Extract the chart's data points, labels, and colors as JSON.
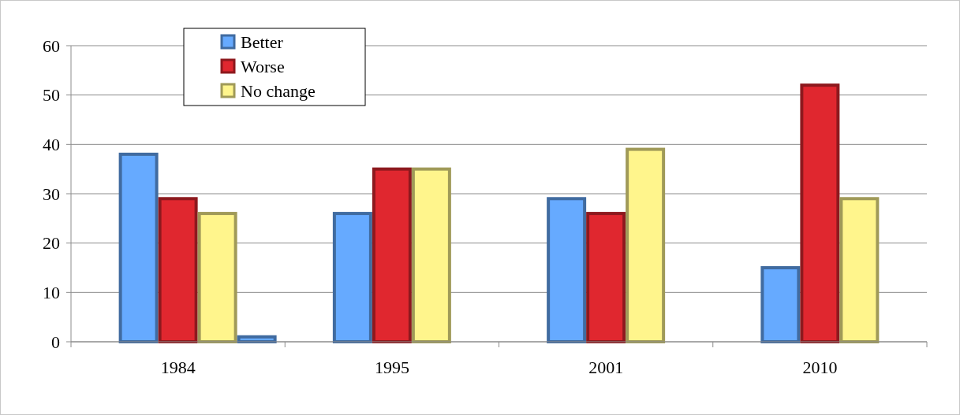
{
  "chart_data": {
    "type": "bar",
    "categories": [
      "1984",
      "1995",
      "2001",
      "2010"
    ],
    "series": [
      {
        "name": "Better",
        "color": "#66aaff",
        "values": [
          38,
          26,
          29,
          15
        ]
      },
      {
        "name": "Worse",
        "color": "#e0272f",
        "values": [
          29,
          35,
          26,
          52
        ]
      },
      {
        "name": "No change",
        "color": "#fff58c",
        "values": [
          26,
          35,
          39,
          29
        ]
      },
      {
        "color": "#66aaff",
        "values": [
          1,
          null,
          null,
          null
        ]
      }
    ],
    "ylim": [
      0,
      60
    ],
    "yticks": [
      0,
      10,
      20,
      30,
      40,
      50,
      60
    ],
    "grid": "y",
    "legend": "top left"
  }
}
